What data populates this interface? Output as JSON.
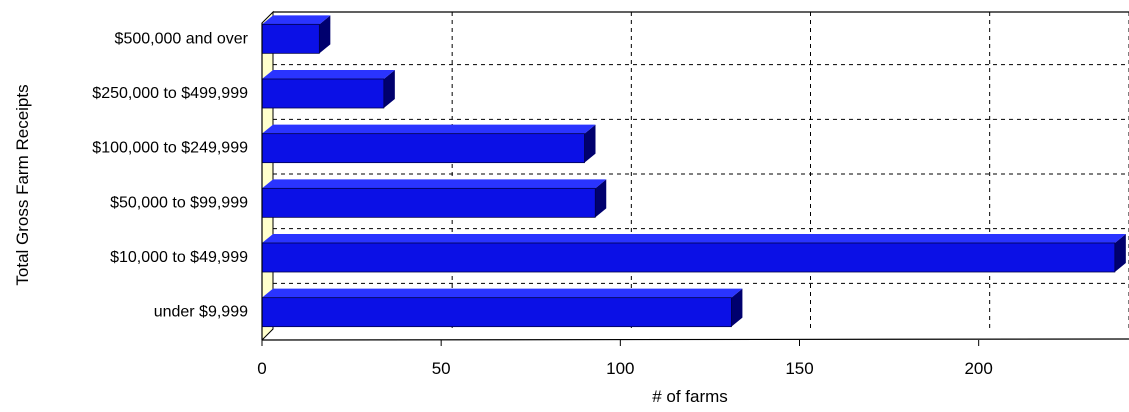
{
  "chart_data": {
    "type": "bar",
    "orientation": "horizontal",
    "style": "3d",
    "title": "",
    "xlabel": "# of farms",
    "ylabel": "Total Gross Farm Receipts",
    "categories": [
      "under $9,999",
      "$10,000 to $49,999",
      "$50,000 to $99,999",
      "$100,000 to $249,999",
      "$250,000 to $499,999",
      "$500,000 and over"
    ],
    "values": [
      131,
      238,
      93,
      90,
      34,
      16
    ],
    "xlim": [
      0,
      240
    ],
    "xticks": [
      "0",
      "50",
      "100",
      "150",
      "200"
    ],
    "grid": true,
    "legend": "none",
    "colors": {
      "bar_front": "#0b10e6",
      "bar_top": "#2a34ff",
      "bar_side": "#00006e",
      "bar_shadow": "#0a0a78",
      "wall": "#ffffcc",
      "grid": "#000000"
    }
  }
}
